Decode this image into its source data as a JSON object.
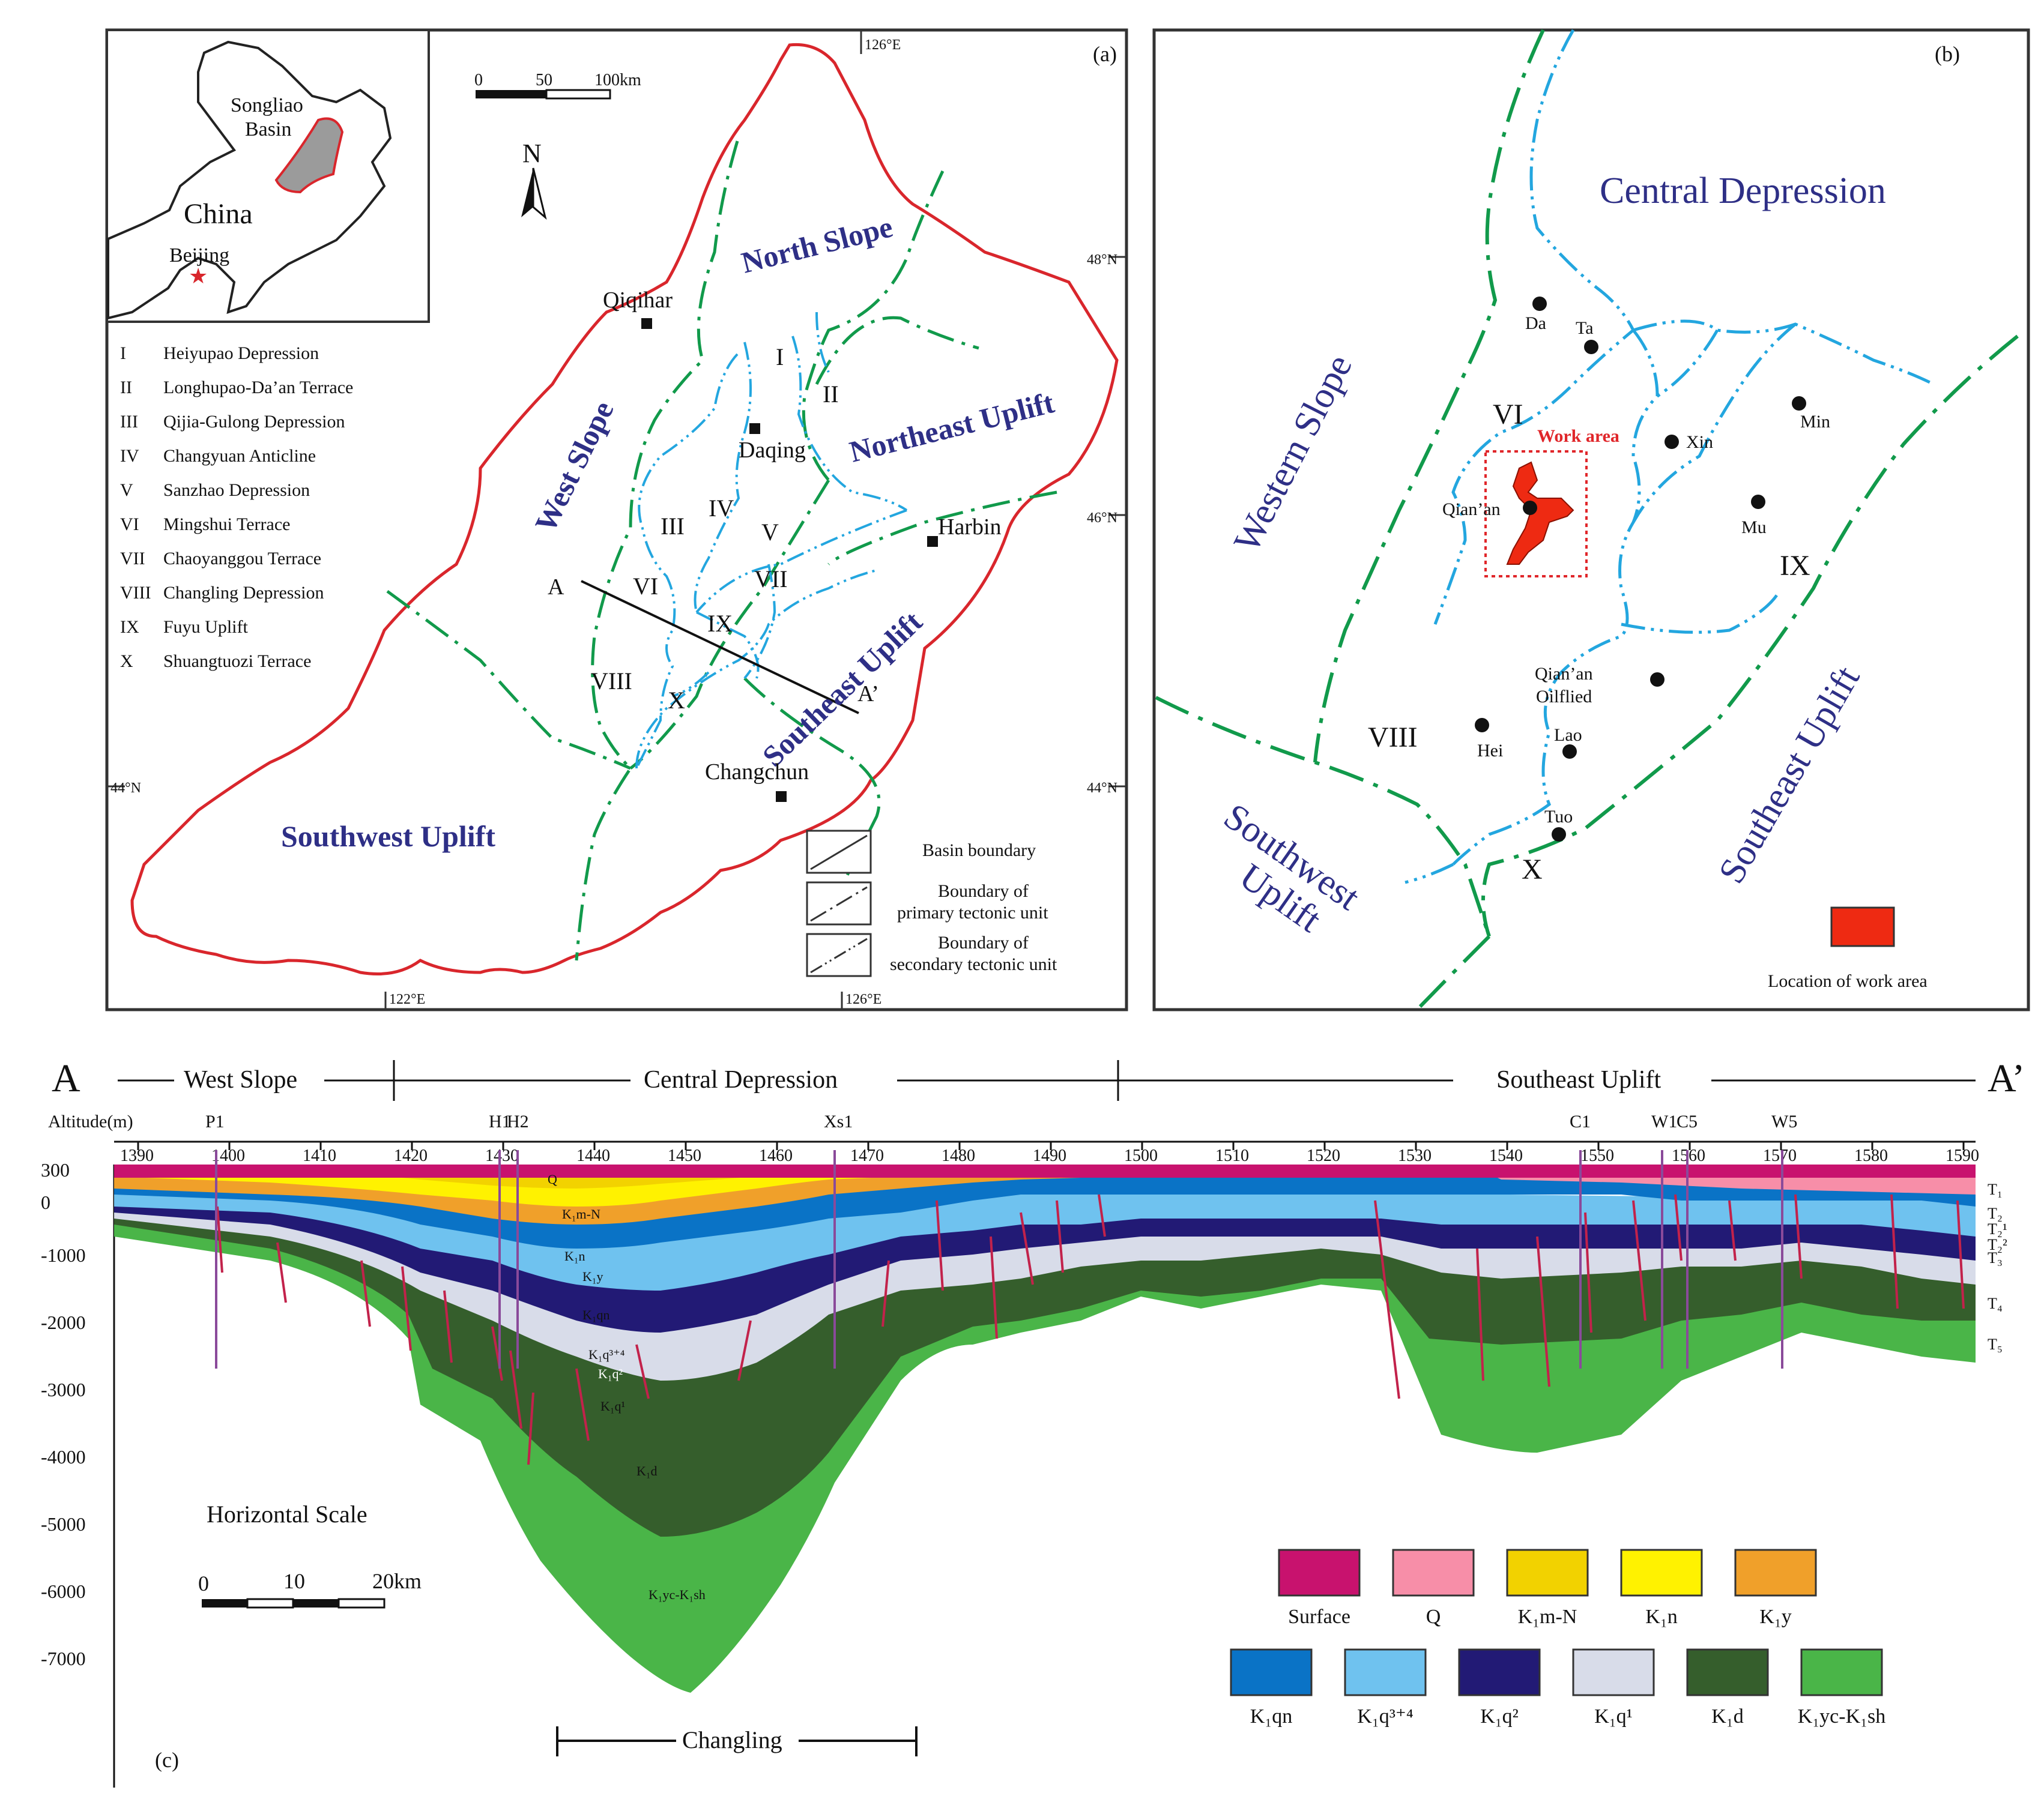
{
  "panel_a": {
    "label": "(a)",
    "coords": {
      "top_lon": "126°E",
      "bottom_lon_left": "122°E",
      "bottom_lon_right": "126°E",
      "lat_48": "48°N",
      "lat_46": "46°N",
      "lat_44_left": "44°N",
      "lat_44_right": "44°N"
    },
    "inset": {
      "basin": "Songliao",
      "basin2": "Basin",
      "country": "China",
      "capital": "Beijing"
    },
    "scale": {
      "zero": "0",
      "mid": "50",
      "end": "100km"
    },
    "north": "N",
    "regions": {
      "north_slope": "North Slope",
      "northeast_uplift": "Northeast Uplift",
      "west_slope": "West Slope",
      "southeast_uplift": "Southeast Uplift",
      "southwest_uplift": "Southwest Uplift"
    },
    "cities": {
      "qiqihar": "Qiqihar",
      "daqing": "Daqing",
      "harbin": "Harbin",
      "changchun": "Changchun"
    },
    "units": {
      "I": "I",
      "II": "II",
      "III": "III",
      "IV": "IV",
      "V": "V",
      "VI": "VI",
      "VII": "VII",
      "VIII": "VIII",
      "IX": "IX",
      "X": "X"
    },
    "section": {
      "a": "A",
      "a2": "A’"
    },
    "unit_legend": [
      {
        "num": "I",
        "name": "Heiyupao Depression"
      },
      {
        "num": "II",
        "name": "Longhupao-Da’an Terrace"
      },
      {
        "num": "III",
        "name": "Qijia-Gulong Depression"
      },
      {
        "num": "IV",
        "name": "Changyuan Anticline"
      },
      {
        "num": "V",
        "name": "Sanzhao Depression"
      },
      {
        "num": "VI",
        "name": "Mingshui Terrace"
      },
      {
        "num": "VII",
        "name": "Chaoyanggou Terrace"
      },
      {
        "num": "VIII",
        "name": "Changling Depression"
      },
      {
        "num": "IX",
        "name": "Fuyu Uplift"
      },
      {
        "num": "X",
        "name": "Shuangtuozi Terrace"
      }
    ],
    "line_legend": {
      "basin": "Basin boundary",
      "primary1": "Boundary of",
      "primary2": "primary tectonic unit",
      "secondary1": "Boundary of",
      "secondary2": "secondary tectonic unit"
    },
    "colors": {
      "basin_boundary": "#d9262c",
      "primary": "#119a4b",
      "secondary": "#23a6df"
    }
  },
  "panel_b": {
    "label": "(b)",
    "regions": {
      "central": "Central Depression",
      "western": "Western Slope",
      "southwest1": "Southwest",
      "southwest2": "Uplift",
      "southeast": "Southeast Uplift"
    },
    "units": {
      "VI": "VI",
      "VIII": "VIII",
      "IX": "IX",
      "X": "X"
    },
    "work_area": "Work area",
    "wells": {
      "da": "Da",
      "ta": "Ta",
      "xin": "Xin",
      "min": "Min",
      "qianan": "Qian’an",
      "mu": "Mu",
      "oilfield1": "Qian’an",
      "oilfield2": "Oilflied",
      "hei": "Hei",
      "lao": "Lao",
      "tuo": "Tuo"
    },
    "legend": "Location of work area",
    "work_color": "#ee2a12"
  },
  "panel_c": {
    "label": "(c)",
    "endpoints": {
      "a": "A",
      "a2": "A’"
    },
    "zones": {
      "west": "West Slope",
      "central": "Central Depression",
      "southeast": "Southeast Uplift"
    },
    "axis_label": "Altitude(m)",
    "x_ticks": [
      "1390",
      "1400",
      "1410",
      "1420",
      "1430",
      "1440",
      "1450",
      "1460",
      "1470",
      "1480",
      "1490",
      "1500",
      "1510",
      "1520",
      "1530",
      "1540",
      "1550",
      "1560",
      "1570",
      "1580",
      "1590"
    ],
    "y_ticks": [
      "300",
      "0",
      "-1000",
      "-2000",
      "-3000",
      "-4000",
      "-5000",
      "-6000",
      "-7000"
    ],
    "wells": [
      "P1",
      "H1",
      "H2",
      "Xs1",
      "C1",
      "W1",
      "C5",
      "W5"
    ],
    "horizons": [
      "T₁",
      "T₂",
      "T₂¹",
      "T₂²",
      "T₃",
      "T₄",
      "T₅"
    ],
    "layer_labels": {
      "q": "Q",
      "kmn": "K₁m-N",
      "kn": "K₁n",
      "ky": "K₁y",
      "kqn": "K₁qn",
      "kq34": "K₁q³⁺⁴",
      "kq2": "K₁q²",
      "kq1": "K₁q¹",
      "kd": "K₁d",
      "kyc": "K₁yc-K₁sh"
    },
    "hscale": {
      "title": "Horizontal Scale",
      "zero": "0",
      "mid": "10",
      "end": "20km"
    },
    "changling": "Changling",
    "legend": [
      {
        "name": "Surface",
        "color": "#c8126e"
      },
      {
        "name": "Q",
        "color": "#f78ea8"
      },
      {
        "name": "K₁m-N",
        "color": "#f2d200"
      },
      {
        "name": "K₁n",
        "color": "#fff200"
      },
      {
        "name": "K₁y",
        "color": "#f0a02a"
      },
      {
        "name": "K₁qn",
        "color": "#0a73c6"
      },
      {
        "name": "K₁q³⁺⁴",
        "color": "#6fc2ef"
      },
      {
        "name": "K₁q²",
        "color": "#221a75"
      },
      {
        "name": "K₁q¹",
        "color": "#d8dce9"
      },
      {
        "name": "K₁d",
        "color": "#355e2c"
      },
      {
        "name": "K₁yc-K₁sh",
        "color": "#4ab548"
      }
    ]
  }
}
